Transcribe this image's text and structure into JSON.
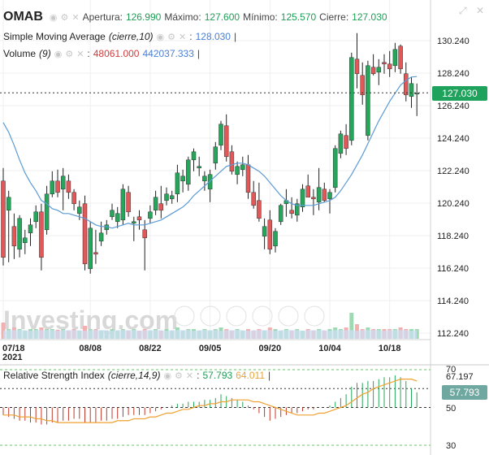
{
  "header": {
    "symbol": "OMAB",
    "apertura_label": "Apertura:",
    "apertura": "126.990",
    "maximo_label": "Máximo:",
    "maximo": "127.600",
    "minimo_label": "Mínimo:",
    "minimo": "125.570",
    "cierre_label": "Cierre:",
    "cierre": "127.030"
  },
  "sma_legend": {
    "name": "Simple Moving Average",
    "params": "(cierre,10)",
    "value": "128.030"
  },
  "volume_legend": {
    "name": "Volume",
    "params": "(9)",
    "value1": "48061.000",
    "value2": "442037.333"
  },
  "rsi_legend": {
    "name": "Relative Strength Index",
    "params": "(cierre,14,9)",
    "value1": "57.793",
    "value2": "64.011"
  },
  "watermark": "Investing.com",
  "price_badge": "127.030",
  "rsi_badge": "57.793",
  "rsi_scale": {
    "t70": "70",
    "t67": "67.197",
    "t50": "50",
    "t30": "30"
  },
  "colors": {
    "up": "#26a65b",
    "down": "#e05858",
    "sma": "#5b9bd5",
    "rsi_signal": "#f0a030",
    "badge": "#1fa35c"
  },
  "icons": [
    "eye-icon",
    "gear-icon",
    "close-icon",
    "expand-icon"
  ],
  "chart_data": [
    {
      "type": "candlestick",
      "y_ticks": [
        "130.240",
        "128.240",
        "126.240",
        "124.240",
        "122.240",
        "120.240",
        "118.240",
        "116.240",
        "114.240",
        "112.240"
      ],
      "ylim": [
        111.8,
        131.2
      ],
      "x_labels": [
        {
          "i": 0,
          "label": "07/18",
          "sub": "2021"
        },
        {
          "i": 16,
          "label": "08/08"
        },
        {
          "i": 27,
          "label": "08/22"
        },
        {
          "i": 38,
          "label": "09/05"
        },
        {
          "i": 49,
          "label": "09/20"
        },
        {
          "i": 60,
          "label": "10/04"
        },
        {
          "i": 71,
          "label": "10/18"
        }
      ],
      "last_close": 127.03,
      "candles": [
        [
          121.6,
          122.4,
          116.4,
          116.9
        ],
        [
          119.8,
          121.0,
          116.6,
          120.6
        ],
        [
          118.8,
          119.6,
          116.8,
          117.6
        ],
        [
          117.4,
          119.5,
          116.9,
          119.3
        ],
        [
          117.8,
          118.6,
          117.1,
          118.1
        ],
        [
          118.4,
          119.3,
          117.6,
          118.9
        ],
        [
          119.1,
          120.1,
          118.7,
          119.7
        ],
        [
          119.7,
          120.2,
          116.1,
          116.9
        ],
        [
          118.6,
          121.3,
          118.3,
          120.8
        ],
        [
          120.8,
          122.2,
          120.6,
          121.6
        ],
        [
          121.6,
          122.3,
          120.6,
          120.9
        ],
        [
          121.1,
          122.4,
          119.8,
          121.9
        ],
        [
          121.6,
          122.0,
          120.5,
          120.9
        ],
        [
          120.9,
          121.1,
          119.8,
          120.2
        ],
        [
          119.6,
          120.4,
          119.2,
          120.0
        ],
        [
          120.2,
          120.7,
          116.1,
          116.5
        ],
        [
          116.2,
          119.1,
          115.9,
          118.7
        ],
        [
          117.2,
          118.6,
          116.5,
          117.1
        ],
        [
          117.9,
          119.1,
          117.6,
          118.4
        ],
        [
          118.6,
          119.2,
          118.3,
          118.9
        ],
        [
          119.4,
          120.2,
          119.2,
          119.8
        ],
        [
          119.1,
          120.0,
          118.7,
          119.6
        ],
        [
          119.2,
          121.4,
          118.9,
          121.1
        ],
        [
          120.9,
          121.3,
          119.4,
          119.7
        ],
        [
          119.0,
          119.4,
          117.9,
          119.1
        ],
        [
          119.4,
          119.8,
          118.6,
          119.2
        ],
        [
          118.6,
          119.2,
          116.1,
          118.1
        ],
        [
          119.3,
          120.1,
          119.0,
          119.7
        ],
        [
          119.8,
          121.0,
          119.5,
          120.6
        ],
        [
          120.2,
          121.3,
          119.3,
          119.8
        ],
        [
          120.4,
          121.2,
          120.1,
          120.8
        ],
        [
          120.5,
          121.0,
          120.2,
          120.7
        ],
        [
          120.8,
          122.6,
          120.3,
          122.1
        ],
        [
          121.6,
          122.3,
          120.9,
          121.9
        ],
        [
          121.4,
          123.1,
          121.0,
          122.9
        ],
        [
          122.9,
          123.6,
          122.2,
          123.4
        ],
        [
          122.4,
          123.1,
          121.9,
          122.5
        ],
        [
          121.6,
          122.2,
          121.0,
          121.9
        ],
        [
          121.1,
          122.3,
          120.3,
          122.0
        ],
        [
          122.7,
          124.0,
          122.3,
          123.7
        ],
        [
          123.8,
          125.3,
          123.5,
          125.1
        ],
        [
          125.0,
          125.7,
          122.8,
          123.1
        ],
        [
          123.4,
          123.8,
          122.0,
          122.2
        ],
        [
          122.0,
          122.8,
          121.4,
          122.5
        ],
        [
          122.3,
          123.1,
          121.9,
          122.6
        ],
        [
          122.6,
          123.2,
          120.5,
          120.9
        ],
        [
          120.9,
          121.6,
          119.9,
          120.1
        ],
        [
          120.4,
          121.5,
          119.1,
          119.3
        ],
        [
          118.2,
          119.3,
          117.4,
          118.8
        ],
        [
          119.2,
          119.8,
          117.1,
          117.4
        ],
        [
          117.6,
          118.7,
          117.2,
          118.5
        ],
        [
          119.1,
          120.2,
          118.9,
          120.1
        ],
        [
          120.2,
          121.1,
          119.4,
          120.4
        ],
        [
          119.8,
          120.6,
          119.3,
          119.6
        ],
        [
          119.5,
          120.5,
          119.1,
          120.2
        ],
        [
          120.0,
          121.4,
          119.7,
          121.1
        ],
        [
          121.3,
          122.0,
          120.6,
          120.6
        ],
        [
          120.6,
          121.1,
          119.5,
          120.5
        ],
        [
          120.3,
          122.4,
          119.8,
          121.2
        ],
        [
          121.1,
          121.5,
          120.3,
          120.4
        ],
        [
          120.5,
          121.1,
          119.6,
          120.9
        ],
        [
          121.2,
          123.8,
          120.9,
          123.6
        ],
        [
          123.3,
          124.7,
          123.0,
          124.5
        ],
        [
          124.4,
          125.1,
          123.2,
          123.6
        ],
        [
          124.1,
          129.5,
          123.8,
          129.2
        ],
        [
          129.1,
          130.7,
          127.3,
          128.2
        ],
        [
          128.1,
          128.9,
          126.3,
          126.9
        ],
        [
          124.4,
          129.0,
          124.1,
          128.7
        ],
        [
          128.6,
          129.4,
          128.1,
          128.2
        ],
        [
          128.3,
          129.1,
          127.5,
          128.6
        ],
        [
          128.9,
          129.4,
          128.2,
          128.8
        ],
        [
          128.8,
          129.6,
          128.0,
          128.5
        ],
        [
          128.7,
          130.1,
          128.3,
          129.7
        ],
        [
          129.9,
          130.0,
          128.2,
          128.5
        ],
        [
          128.2,
          128.9,
          126.5,
          126.9
        ],
        [
          126.8,
          128.0,
          126.1,
          127.6
        ],
        [
          127.0,
          127.6,
          125.6,
          127.0
        ]
      ],
      "sma": [
        125.2,
        124.6,
        123.8,
        122.9,
        122.1,
        121.5,
        121.0,
        120.4,
        120.2,
        119.9,
        119.8,
        119.6,
        119.6,
        119.5,
        119.4,
        119.3,
        119.1,
        118.9,
        118.8,
        118.8,
        118.7,
        118.8,
        118.9,
        119.0,
        118.9,
        118.9,
        118.9,
        119.0,
        119.1,
        119.2,
        119.4,
        119.6,
        119.8,
        120.0,
        120.3,
        120.7,
        121.0,
        121.3,
        121.6,
        121.9,
        122.2,
        122.5,
        122.6,
        122.7,
        122.7,
        122.6,
        122.4,
        122.2,
        121.9,
        121.5,
        121.1,
        120.7,
        120.4,
        120.2,
        120.1,
        120.1,
        120.1,
        120.1,
        120.2,
        120.3,
        120.4,
        120.6,
        121.0,
        121.5,
        122.0,
        122.6,
        123.2,
        123.9,
        124.6,
        125.3,
        125.9,
        126.5,
        127.0,
        127.5,
        127.8,
        128.0,
        128.03
      ],
      "volume": [
        0.5,
        0.3,
        0.35,
        0.3,
        0.25,
        0.3,
        0.3,
        0.35,
        0.3,
        0.3,
        0.28,
        0.3,
        0.25,
        0.3,
        0.25,
        0.4,
        0.3,
        0.3,
        0.25,
        0.25,
        0.3,
        0.25,
        0.3,
        0.25,
        0.3,
        0.25,
        0.3,
        0.25,
        0.3,
        0.25,
        0.3,
        0.25,
        0.35,
        0.25,
        0.3,
        0.3,
        0.25,
        0.3,
        0.25,
        0.3,
        0.35,
        0.3,
        0.25,
        0.3,
        0.25,
        0.3,
        0.25,
        0.3,
        0.25,
        0.35,
        0.3,
        0.25,
        0.3,
        0.25,
        0.3,
        0.25,
        0.3,
        0.25,
        0.3,
        0.25,
        0.3,
        0.35,
        0.3,
        0.35,
        0.8,
        0.45,
        0.3,
        0.35,
        0.3,
        0.3,
        0.3,
        0.3,
        0.3,
        0.35,
        0.3,
        0.3,
        0.3
      ]
    },
    {
      "type": "rsi",
      "ylim": [
        28,
        72
      ],
      "levels": [
        70,
        50,
        30
      ],
      "rsi": [
        46,
        45,
        44,
        43,
        43,
        42,
        42,
        41,
        41,
        42,
        42,
        43,
        43,
        44,
        44,
        42,
        42,
        42,
        43,
        43,
        44,
        44,
        45,
        46,
        46,
        46,
        46,
        47,
        48,
        49,
        50,
        51,
        52,
        52,
        53,
        53,
        53,
        54,
        54,
        55,
        57,
        56,
        55,
        54,
        53,
        51,
        49,
        47,
        45,
        43,
        44,
        45,
        46,
        47,
        47,
        48,
        49,
        49,
        50,
        50,
        51,
        53,
        55,
        57,
        61,
        63,
        63,
        64,
        64,
        65,
        66,
        66,
        67,
        66,
        64,
        60,
        58
      ],
      "signal": [
        46,
        46,
        46,
        45,
        45,
        45,
        44,
        44,
        43,
        43,
        42,
        42,
        42,
        42,
        42,
        42,
        42,
        42,
        42,
        42,
        42,
        43,
        43,
        43,
        44,
        44,
        44,
        45,
        45,
        46,
        47,
        47,
        48,
        49,
        49,
        50,
        51,
        51,
        52,
        52,
        53,
        53,
        54,
        54,
        54,
        54,
        53,
        53,
        52,
        51,
        50,
        49,
        48,
        47,
        46,
        46,
        46,
        46,
        47,
        47,
        48,
        49,
        50,
        51,
        53,
        55,
        57,
        58,
        60,
        61,
        62,
        63,
        64,
        65,
        65,
        65,
        64
      ]
    }
  ]
}
